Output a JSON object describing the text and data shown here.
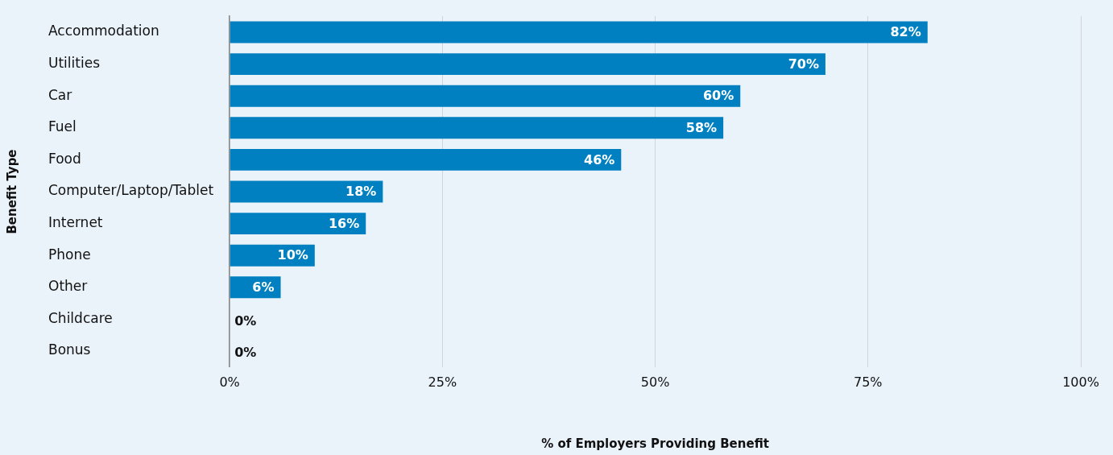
{
  "chart_data": {
    "type": "bar",
    "orientation": "horizontal",
    "xlabel": "% of Employers Providing Benefit",
    "ylabel": "Benefit Type",
    "categories": [
      "Accommodation",
      "Utilities",
      "Car",
      "Fuel",
      "Food",
      "Computer/Laptop/Tablet",
      "Internet",
      "Phone",
      "Other",
      "Childcare",
      "Bonus"
    ],
    "values": [
      82,
      70,
      60,
      58,
      46,
      18,
      16,
      10,
      6,
      0,
      0
    ],
    "value_labels": [
      "82%",
      "70%",
      "60%",
      "58%",
      "46%",
      "18%",
      "16%",
      "10%",
      "6%",
      "0%",
      "0%"
    ],
    "color": "#0080c0",
    "xlim": [
      0,
      100
    ],
    "xticks": [
      {
        "value": 0,
        "label": "0%"
      },
      {
        "value": 25,
        "label": "25%"
      },
      {
        "value": 50,
        "label": "50%"
      },
      {
        "value": 75,
        "label": "75%"
      },
      {
        "value": 100,
        "label": "100%"
      }
    ],
    "grid": "x",
    "legend": false
  }
}
